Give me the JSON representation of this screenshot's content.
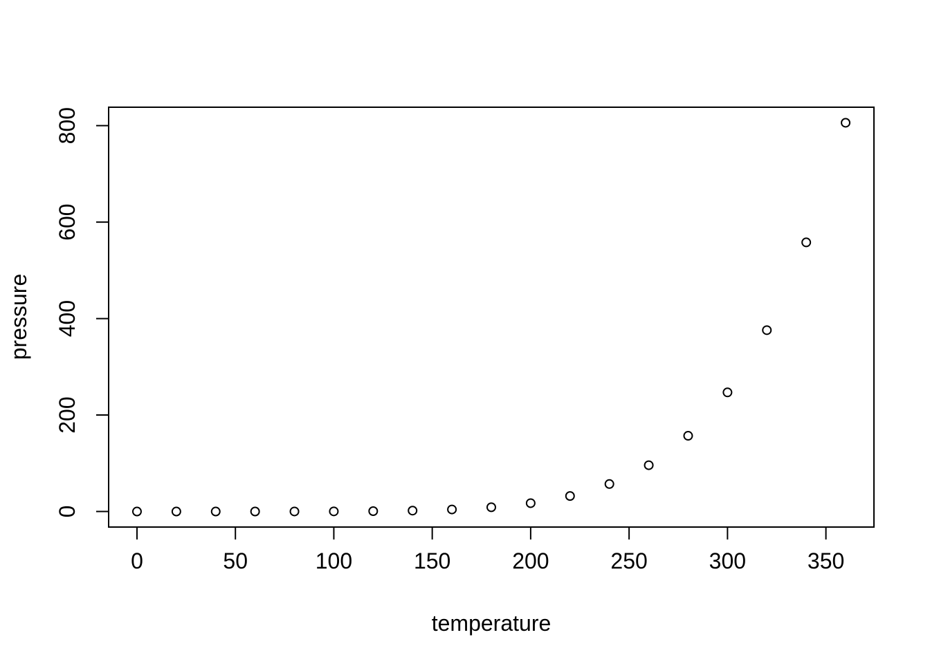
{
  "chart_data": {
    "type": "scatter",
    "title": "",
    "xlabel": "temperature",
    "ylabel": "pressure",
    "x": [
      0,
      20,
      40,
      60,
      80,
      100,
      120,
      140,
      160,
      180,
      200,
      220,
      240,
      260,
      280,
      300,
      320,
      340,
      360
    ],
    "y": [
      0.0002,
      0.0012,
      0.006,
      0.03,
      0.09,
      0.27,
      0.75,
      1.85,
      4.2,
      8.8,
      17.3,
      32.1,
      57.0,
      96.0,
      157.0,
      247.0,
      376.0,
      558.0,
      806.0
    ],
    "x_ticks": [
      0,
      50,
      100,
      150,
      200,
      250,
      300,
      350
    ],
    "y_ticks": [
      0,
      200,
      400,
      600,
      800
    ],
    "xlim": [
      0,
      360
    ],
    "ylim": [
      0.0002,
      806
    ],
    "grid": false,
    "legend": null,
    "marker": "open-circle",
    "colors": {
      "points": "#000000",
      "axis": "#000000",
      "background": "#ffffff"
    }
  }
}
